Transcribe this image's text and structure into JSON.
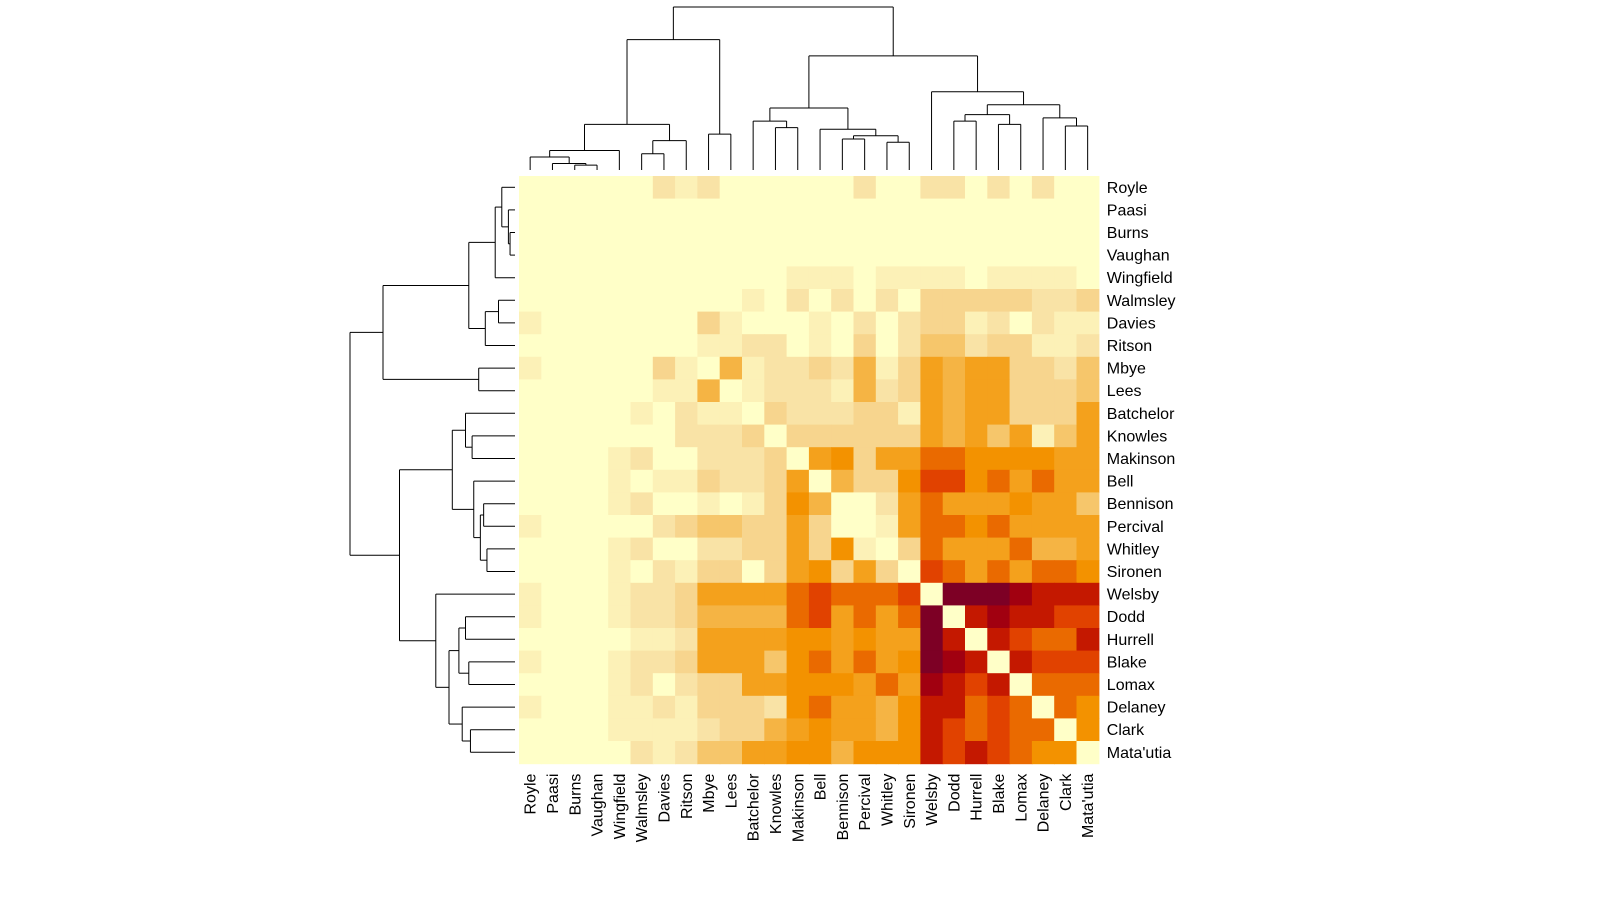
{
  "chart_data": {
    "type": "heatmap",
    "labels": [
      "Royle",
      "Paasi",
      "Burns",
      "Vaughan",
      "Wingfield",
      "Walmsley",
      "Davies",
      "Ritson",
      "Mbye",
      "Lees",
      "Batchelor",
      "Knowles",
      "Makinson",
      "Bell",
      "Bennison",
      "Percival",
      "Whitley",
      "Sironen",
      "Welsby",
      "Dodd",
      "Hurrell",
      "Blake",
      "Lomax",
      "Delaney",
      "Clark",
      "Mata'utia"
    ],
    "rows": [
      "Royle",
      "Paasi",
      "Burns",
      "Vaughan",
      "Wingfield",
      "Walmsley",
      "Davies",
      "Ritson",
      "Mbye",
      "Lees",
      "Batchelor",
      "Knowles",
      "Makinson",
      "Bell",
      "Bennison",
      "Percival",
      "Whitley",
      "Sironen",
      "Welsby",
      "Dodd",
      "Hurrell",
      "Blake",
      "Lomax",
      "Delaney",
      "Clark",
      "Mata'utia"
    ],
    "columns": [
      "Royle",
      "Paasi",
      "Burns",
      "Vaughan",
      "Wingfield",
      "Walmsley",
      "Davies",
      "Ritson",
      "Mbye",
      "Lees",
      "Batchelor",
      "Knowles",
      "Makinson",
      "Bell",
      "Bennison",
      "Percival",
      "Whitley",
      "Sironen",
      "Welsby",
      "Dodd",
      "Hurrell",
      "Blake",
      "Lomax",
      "Delaney",
      "Clark",
      "Mata'utia"
    ],
    "color_scale": "heat (light yellow = low, dark red = high)",
    "palette": [
      "#FFFFC8",
      "#FCF1B7",
      "#F9E3A6",
      "#F7D58E",
      "#F6C66B",
      "#F5B444",
      "#F4A11C",
      "#F39200",
      "#EA6A00",
      "#E14200",
      "#C41800",
      "#A10010",
      "#7D0025"
    ],
    "values": [
      [
        0,
        0,
        0,
        0,
        0,
        0,
        2,
        1,
        2,
        0,
        0,
        0,
        0,
        0,
        0,
        2,
        0,
        0,
        2,
        2,
        0,
        2,
        0,
        2,
        0,
        0
      ],
      [
        0,
        0,
        0,
        0,
        0,
        0,
        0,
        0,
        0,
        0,
        0,
        0,
        0,
        0,
        0,
        0,
        0,
        0,
        0,
        0,
        0,
        0,
        0,
        0,
        0,
        0
      ],
      [
        0,
        0,
        0,
        0,
        0,
        0,
        0,
        0,
        0,
        0,
        0,
        0,
        0,
        0,
        0,
        0,
        0,
        0,
        0,
        0,
        0,
        0,
        0,
        0,
        0,
        0
      ],
      [
        0,
        0,
        0,
        0,
        0,
        0,
        0,
        0,
        0,
        0,
        0,
        0,
        0,
        0,
        0,
        0,
        0,
        0,
        0,
        0,
        0,
        0,
        0,
        0,
        0,
        0
      ],
      [
        0,
        0,
        0,
        0,
        0,
        0,
        0,
        0,
        0,
        0,
        0,
        0,
        1,
        1,
        1,
        0,
        1,
        1,
        1,
        1,
        0,
        1,
        1,
        1,
        1,
        0
      ],
      [
        0,
        0,
        0,
        0,
        0,
        0,
        0,
        0,
        0,
        0,
        1,
        0,
        2,
        0,
        2,
        0,
        2,
        0,
        3,
        3,
        3,
        3,
        3,
        2,
        2,
        3
      ],
      [
        1,
        0,
        0,
        0,
        0,
        0,
        0,
        0,
        3,
        1,
        0,
        0,
        0,
        1,
        0,
        2,
        0,
        2,
        3,
        3,
        1,
        2,
        0,
        2,
        1,
        1
      ],
      [
        0,
        0,
        0,
        0,
        0,
        0,
        0,
        0,
        1,
        1,
        2,
        2,
        0,
        1,
        0,
        3,
        0,
        2,
        4,
        4,
        2,
        3,
        3,
        1,
        1,
        2
      ],
      [
        1,
        0,
        0,
        0,
        0,
        0,
        3,
        1,
        0,
        5,
        1,
        2,
        2,
        3,
        2,
        5,
        1,
        3,
        6,
        5,
        6,
        6,
        3,
        3,
        2,
        4
      ],
      [
        0,
        0,
        0,
        0,
        0,
        0,
        1,
        1,
        5,
        0,
        1,
        2,
        2,
        2,
        1,
        5,
        2,
        3,
        6,
        5,
        6,
        6,
        3,
        3,
        3,
        4
      ],
      [
        0,
        0,
        0,
        0,
        0,
        1,
        0,
        2,
        1,
        1,
        0,
        3,
        2,
        2,
        2,
        3,
        3,
        1,
        6,
        5,
        6,
        6,
        3,
        3,
        3,
        6
      ],
      [
        0,
        0,
        0,
        0,
        0,
        0,
        0,
        2,
        2,
        2,
        3,
        0,
        3,
        3,
        3,
        3,
        3,
        3,
        6,
        5,
        6,
        4,
        6,
        1,
        4,
        6
      ],
      [
        0,
        0,
        0,
        0,
        1,
        2,
        0,
        0,
        2,
        2,
        2,
        3,
        0,
        6,
        7,
        3,
        6,
        6,
        8,
        8,
        7,
        7,
        7,
        7,
        6,
        6
      ],
      [
        0,
        0,
        0,
        0,
        1,
        0,
        1,
        1,
        3,
        2,
        2,
        3,
        6,
        0,
        5,
        3,
        3,
        7,
        9,
        9,
        7,
        8,
        6,
        8,
        6,
        6
      ],
      [
        0,
        0,
        0,
        0,
        1,
        2,
        0,
        0,
        1,
        0,
        1,
        3,
        7,
        5,
        0,
        0,
        2,
        6,
        8,
        6,
        6,
        6,
        7,
        6,
        6,
        4
      ],
      [
        1,
        0,
        0,
        0,
        0,
        0,
        2,
        3,
        4,
        4,
        3,
        3,
        6,
        3,
        0,
        0,
        1,
        6,
        8,
        8,
        7,
        8,
        6,
        6,
        6,
        6
      ],
      [
        0,
        0,
        0,
        0,
        1,
        2,
        0,
        0,
        2,
        2,
        3,
        3,
        6,
        3,
        7,
        1,
        0,
        3,
        8,
        6,
        6,
        6,
        8,
        5,
        5,
        6
      ],
      [
        0,
        0,
        0,
        0,
        1,
        0,
        2,
        1,
        3,
        3,
        0,
        3,
        6,
        7,
        3,
        6,
        3,
        0,
        9,
        8,
        6,
        8,
        6,
        8,
        8,
        7
      ],
      [
        1,
        0,
        0,
        0,
        1,
        2,
        2,
        3,
        6,
        6,
        6,
        6,
        8,
        9,
        8,
        8,
        8,
        9,
        0,
        12,
        12,
        12,
        11,
        10,
        10,
        10
      ],
      [
        1,
        0,
        0,
        0,
        1,
        2,
        2,
        3,
        5,
        5,
        5,
        5,
        8,
        9,
        6,
        8,
        6,
        8,
        12,
        0,
        10,
        11,
        10,
        10,
        9,
        9
      ],
      [
        0,
        0,
        0,
        0,
        0,
        1,
        1,
        2,
        6,
        6,
        6,
        6,
        7,
        7,
        6,
        7,
        6,
        6,
        12,
        10,
        0,
        10,
        9,
        8,
        8,
        10
      ],
      [
        1,
        0,
        0,
        0,
        1,
        2,
        2,
        3,
        6,
        6,
        6,
        4,
        7,
        8,
        6,
        8,
        6,
        7,
        12,
        11,
        10,
        0,
        10,
        9,
        9,
        9
      ],
      [
        0,
        0,
        0,
        0,
        1,
        2,
        0,
        2,
        3,
        3,
        6,
        6,
        7,
        7,
        7,
        6,
        8,
        6,
        11,
        10,
        9,
        10,
        0,
        8,
        8,
        8
      ],
      [
        1,
        0,
        0,
        0,
        1,
        1,
        2,
        1,
        3,
        3,
        3,
        2,
        7,
        8,
        6,
        6,
        5,
        7,
        10,
        10,
        8,
        9,
        8,
        0,
        8,
        7
      ],
      [
        0,
        0,
        0,
        0,
        1,
        1,
        1,
        1,
        2,
        3,
        3,
        5,
        6,
        7,
        6,
        6,
        5,
        7,
        10,
        9,
        8,
        9,
        8,
        8,
        0,
        7
      ],
      [
        0,
        0,
        0,
        0,
        0,
        2,
        1,
        2,
        4,
        4,
        6,
        6,
        7,
        7,
        5,
        7,
        7,
        7,
        10,
        9,
        10,
        9,
        8,
        7,
        7,
        0
      ]
    ]
  }
}
